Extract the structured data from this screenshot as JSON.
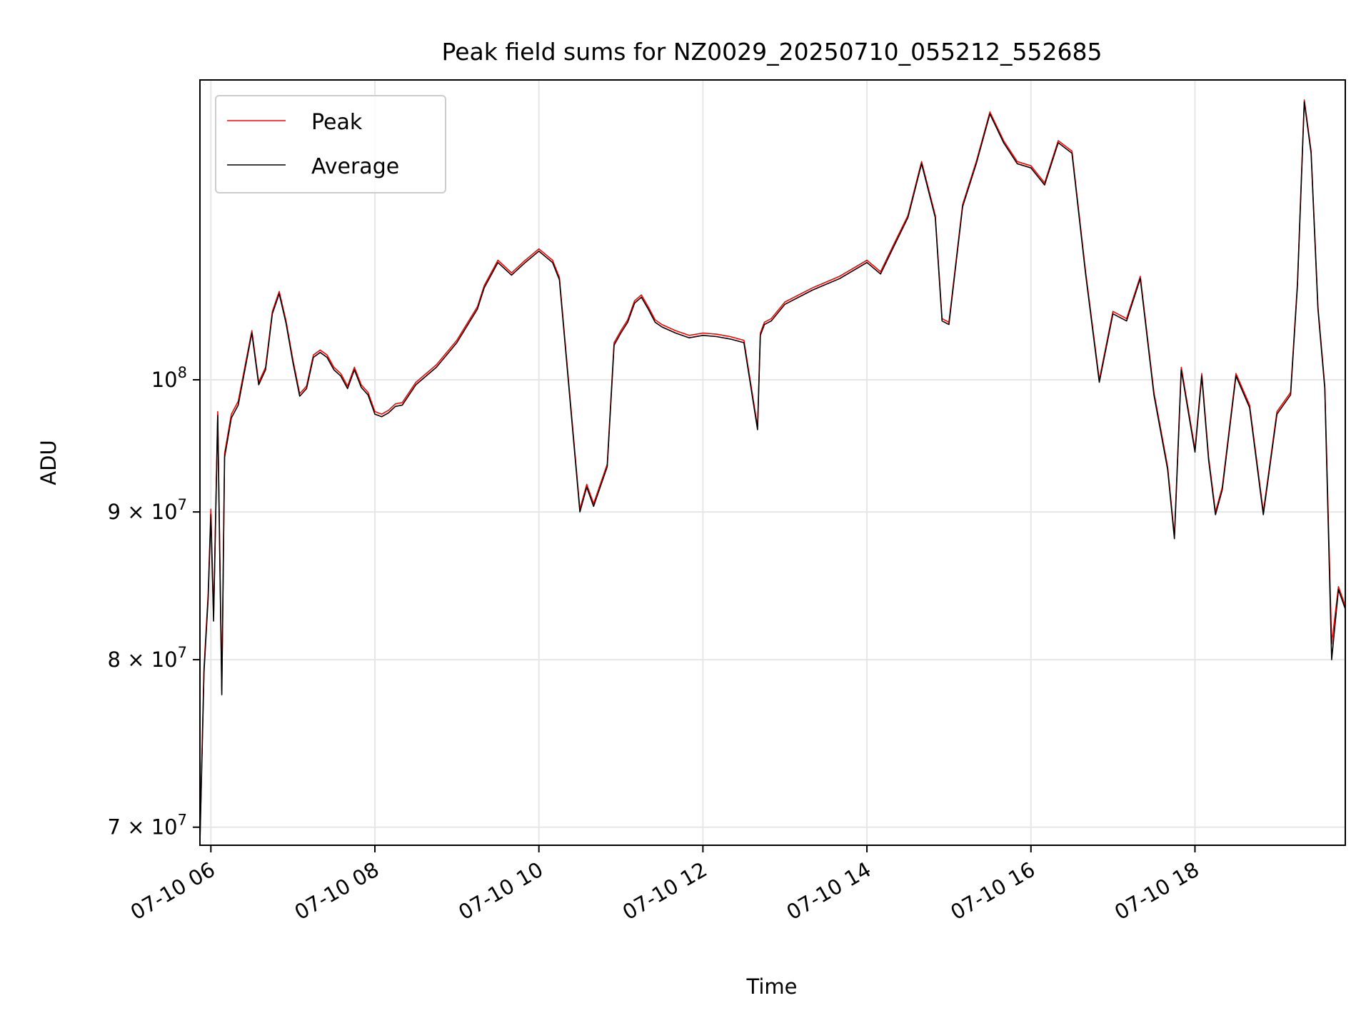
{
  "chart_data": {
    "type": "line",
    "title": "Peak field sums for NZ0029_20250710_055212_552685",
    "xlabel": "Time",
    "ylabel": "ADU",
    "x_ticks": [
      "07-10 06",
      "07-10 08",
      "07-10 10",
      "07-10 12",
      "07-10 14",
      "07-10 16",
      "07-10 18"
    ],
    "y_ticks": [
      {
        "value": 70000000,
        "mantissa": "7",
        "exponent": "7"
      },
      {
        "value": 80000000,
        "mantissa": "8",
        "exponent": "7"
      },
      {
        "value": 90000000,
        "mantissa": "9",
        "exponent": "7"
      },
      {
        "value": 100000000,
        "mantissa": "",
        "exponent": "8"
      }
    ],
    "y_scale": "log",
    "xlim": [
      "2025-07-10 05:52",
      "2025-07-10 19:50"
    ],
    "ylim": [
      69000000,
      127000000
    ],
    "grid": true,
    "legend_position": "upper-left",
    "series": [
      {
        "name": "Peak",
        "color": "#ff0000"
      },
      {
        "name": "Average",
        "color": "#000000"
      }
    ],
    "x": [
      "05:52",
      "05:55",
      "05:58",
      "06:00",
      "06:02",
      "06:05",
      "06:08",
      "06:10",
      "06:15",
      "06:20",
      "06:30",
      "06:35",
      "06:40",
      "06:45",
      "06:50",
      "06:55",
      "07:00",
      "07:05",
      "07:10",
      "07:15",
      "07:20",
      "07:25",
      "07:30",
      "07:35",
      "07:40",
      "07:45",
      "07:50",
      "07:55",
      "08:00",
      "08:05",
      "08:10",
      "08:15",
      "08:20",
      "08:30",
      "08:45",
      "09:00",
      "09:15",
      "09:20",
      "09:30",
      "09:40",
      "09:50",
      "10:00",
      "10:10",
      "10:15",
      "10:20",
      "10:30",
      "10:35",
      "10:40",
      "10:50",
      "10:55",
      "11:00",
      "11:05",
      "11:10",
      "11:15",
      "11:20",
      "11:25",
      "11:30",
      "11:40",
      "11:50",
      "12:00",
      "12:10",
      "12:20",
      "12:30",
      "12:40",
      "12:42",
      "12:45",
      "12:50",
      "13:00",
      "13:20",
      "13:40",
      "14:00",
      "14:10",
      "14:20",
      "14:30",
      "14:40",
      "14:50",
      "14:55",
      "15:00",
      "15:10",
      "15:20",
      "15:30",
      "15:40",
      "15:50",
      "16:00",
      "16:10",
      "16:20",
      "16:30",
      "16:40",
      "16:50",
      "17:00",
      "17:10",
      "17:20",
      "17:30",
      "17:40",
      "17:45",
      "17:50",
      "18:00",
      "18:05",
      "18:10",
      "18:15",
      "18:20",
      "18:30",
      "18:40",
      "18:50",
      "19:00",
      "19:10",
      "19:15",
      "19:20",
      "19:25",
      "19:30",
      "19:35",
      "19:40",
      "19:45",
      "19:50"
    ],
    "values": [
      [
        69300000,
        79500000,
        84300000,
        90200000,
        82800000,
        97500000,
        78100000,
        94300000,
        97300000,
        98300000,
        104000000,
        99800000,
        101000000,
        105600000,
        107300000,
        104800000,
        101600000,
        98900000,
        99500000,
        102000000,
        102400000,
        102000000,
        101000000,
        100500000,
        99500000,
        101000000,
        99600000,
        99000000,
        97500000,
        97300000,
        97600000,
        98100000,
        98200000,
        99800000,
        101200000,
        103200000,
        106000000,
        107800000,
        110000000,
        108900000,
        110000000,
        111000000,
        110000000,
        108500000,
        102000000,
        90200000,
        92000000,
        90600000,
        93500000,
        103000000,
        104000000,
        104900000,
        106500000,
        107000000,
        106000000,
        104900000,
        104500000,
        104000000,
        103600000,
        103800000,
        103700000,
        103500000,
        103200000,
        96300000,
        103800000,
        104700000,
        105000000,
        106400000,
        107600000,
        108600000,
        110000000,
        109000000,
        111500000,
        114000000,
        119000000,
        114000000,
        105000000,
        104700000,
        115000000,
        119000000,
        123800000,
        121000000,
        119000000,
        118600000,
        117000000,
        121000000,
        120000000,
        109000000,
        100000000,
        105600000,
        105000000,
        108600000,
        99000000,
        93300000,
        88300000,
        101000000,
        94600000,
        100500000,
        94000000,
        90000000,
        91800000,
        100500000,
        98000000,
        90000000,
        97500000,
        99000000,
        108000000,
        125000000,
        120000000,
        106000000,
        99500000,
        81000000,
        84800000,
        83500000
      ],
      [
        69100000,
        79200000,
        84000000,
        89800000,
        82500000,
        97200000,
        77800000,
        94000000,
        97000000,
        98000000,
        103800000,
        99600000,
        100800000,
        105400000,
        107100000,
        104600000,
        101400000,
        98700000,
        99300000,
        101800000,
        102200000,
        101800000,
        100800000,
        100300000,
        99300000,
        100800000,
        99400000,
        98800000,
        97300000,
        97100000,
        97400000,
        97900000,
        98000000,
        99600000,
        101000000,
        103000000,
        105800000,
        107600000,
        109800000,
        108700000,
        109800000,
        110800000,
        109800000,
        108300000,
        101800000,
        90000000,
        91800000,
        90400000,
        93300000,
        102800000,
        103800000,
        104700000,
        106300000,
        106800000,
        105800000,
        104700000,
        104300000,
        103800000,
        103400000,
        103600000,
        103500000,
        103300000,
        103000000,
        96100000,
        103600000,
        104500000,
        104800000,
        106200000,
        107400000,
        108400000,
        109800000,
        108800000,
        111300000,
        113800000,
        118800000,
        113800000,
        104800000,
        104500000,
        114800000,
        118800000,
        123600000,
        120800000,
        118800000,
        118400000,
        116800000,
        120800000,
        119800000,
        108800000,
        99800000,
        105400000,
        104800000,
        108400000,
        98800000,
        93100000,
        88100000,
        100800000,
        94400000,
        100300000,
        93800000,
        89800000,
        91600000,
        100300000,
        97800000,
        89800000,
        97300000,
        98800000,
        107800000,
        124800000,
        119800000,
        105800000,
        99300000,
        80000000,
        84600000,
        83300000
      ]
    ]
  }
}
